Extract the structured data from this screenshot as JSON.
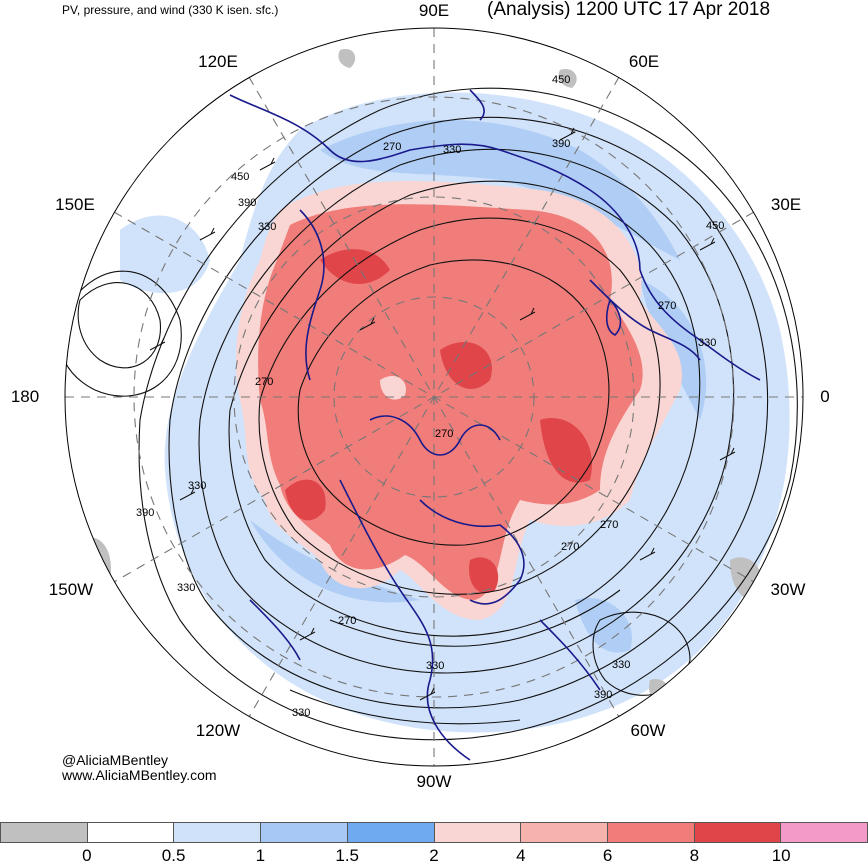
{
  "header": {
    "subtitle": "PV, pressure, and wind (330 K isen. sfc.)",
    "title": "(Analysis) 1200 UTC 17 Apr 2018"
  },
  "longitude_labels": {
    "e90": "90E",
    "e120": "120E",
    "e60": "60E",
    "e150": "150E",
    "e30": "30E",
    "w180": "180",
    "zero": "0",
    "w150": "150W",
    "w30": "30W",
    "w120": "120W",
    "w60": "60W",
    "w90": "90W"
  },
  "contour_labels": [
    "450",
    "270",
    "330",
    "390",
    "450",
    "390",
    "330",
    "270",
    "450",
    "270",
    "330",
    "270",
    "330",
    "390",
    "330",
    "270",
    "330",
    "270",
    "330",
    "390",
    "330",
    "270"
  ],
  "credits": {
    "handle": "@AliciaMBentley",
    "site": "www.AliciaMBentley.com"
  },
  "colorbar": {
    "colors": [
      "#c0c0c0",
      "#ffffff",
      "#cfe2fa",
      "#a7c8f4",
      "#6faaf0",
      "#f9d6d3",
      "#f6b3ae",
      "#f07d7a",
      "#e0454a",
      "#f49ac8"
    ],
    "ticks": [
      "0",
      "0.5",
      "1",
      "1.5",
      "2",
      "4",
      "6",
      "8",
      "10"
    ]
  },
  "map_colors": {
    "ocean": "#ffffff",
    "coast": "#1a1a8c",
    "contour": "#111111",
    "grid": "#777777",
    "pv_high": "#f07d7a",
    "pv_very_high": "#e0454a",
    "pv_med": "#f9d6d3",
    "pv_low": "#a7c8f4",
    "pv_lowest": "#cfe2fa",
    "pv_neg": "#c0c0c0"
  }
}
